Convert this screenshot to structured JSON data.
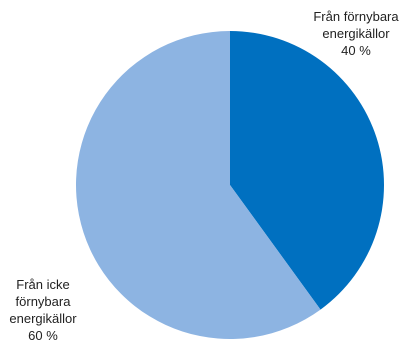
{
  "chart_data": {
    "type": "pie",
    "title": "",
    "slices": [
      {
        "label_lines": [
          "Från förnybara",
          "energikällor",
          "40 %"
        ],
        "value": 40,
        "color": "#0070c0"
      },
      {
        "label_lines": [
          "Från icke",
          "förnybara",
          "energikällor",
          "60 %"
        ],
        "value": 60,
        "color": "#8db4e2"
      }
    ],
    "legend": "none"
  }
}
